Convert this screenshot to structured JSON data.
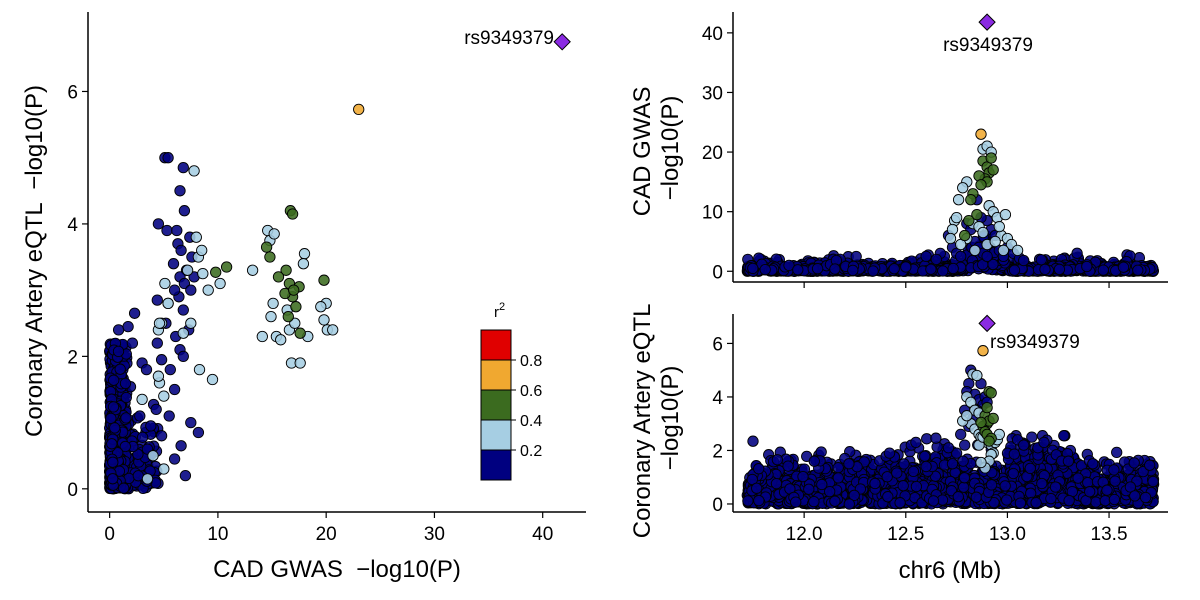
{
  "colors": {
    "r2_0_0.2": "#000080",
    "r2_0.2_0.4": "#a6cee3",
    "r2_0.4_0.6": "#3b6b1f",
    "r2_0.6_0.8": "#f0a830",
    "r2_0.8_1": "#e00000",
    "lead": "#8a2be2"
  },
  "legend": {
    "title": "r",
    "title_sup": "2",
    "labels": [
      "0.8",
      "0.6",
      "0.4",
      "0.2"
    ]
  },
  "chart_data": [
    {
      "id": "scatter",
      "type": "scatter",
      "title": "",
      "xlabel": "CAD GWAS  −log10(P)",
      "ylabel": "Coronary Artery eQTL  −log10(P)",
      "xlim": [
        -2,
        44
      ],
      "ylim": [
        -0.35,
        7.2
      ],
      "xticks": [
        0,
        10,
        20,
        30,
        40
      ],
      "yticks": [
        0,
        2,
        4,
        6
      ],
      "lead": {
        "x": 41.8,
        "y": 6.75,
        "label": "rs9349379"
      },
      "orange": [
        {
          "x": 23.0,
          "y": 5.73
        }
      ],
      "green": [
        [
          9.8,
          3.27
        ],
        [
          10.8,
          3.35
        ],
        [
          14.5,
          3.65
        ],
        [
          14.8,
          3.5
        ],
        [
          16.3,
          3.3
        ],
        [
          16.6,
          3.1
        ],
        [
          16.9,
          2.9
        ],
        [
          17.2,
          2.75
        ],
        [
          16.2,
          2.95
        ],
        [
          17.5,
          3.05
        ],
        [
          16.5,
          2.6
        ],
        [
          17.6,
          2.35
        ],
        [
          16.7,
          4.2
        ],
        [
          16.9,
          4.15
        ],
        [
          19.8,
          3.15
        ],
        [
          15.6,
          3.2
        ],
        [
          17.0,
          3.0
        ]
      ],
      "lightblue": [
        [
          5.1,
          3.1
        ],
        [
          5.4,
          2.8
        ],
        [
          7.8,
          4.8
        ],
        [
          8.0,
          3.8
        ],
        [
          8.2,
          3.5
        ],
        [
          8.6,
          3.25
        ],
        [
          9.1,
          3.0
        ],
        [
          10.2,
          3.1
        ],
        [
          14.1,
          2.3
        ],
        [
          14.9,
          2.6
        ],
        [
          15.4,
          2.3
        ],
        [
          15.8,
          2.25
        ],
        [
          16.6,
          2.4
        ],
        [
          16.8,
          1.9
        ],
        [
          17.6,
          1.9
        ],
        [
          16.4,
          2.7
        ],
        [
          14.6,
          3.9
        ],
        [
          14.8,
          3.75
        ],
        [
          15.2,
          3.85
        ],
        [
          18.0,
          3.55
        ],
        [
          17.1,
          2.5
        ],
        [
          18.3,
          2.3
        ],
        [
          19.8,
          2.55
        ],
        [
          20.1,
          2.4
        ],
        [
          20.6,
          2.4
        ],
        [
          20.0,
          2.8
        ],
        [
          7.5,
          2.5
        ],
        [
          6.8,
          2.35
        ],
        [
          8.3,
          1.8
        ],
        [
          9.5,
          1.65
        ],
        [
          4.5,
          2.4
        ],
        [
          4.8,
          2.5
        ],
        [
          5.4,
          2.8
        ],
        [
          4.6,
          2.5
        ],
        [
          4.6,
          1.6
        ],
        [
          4.5,
          1.7
        ],
        [
          5.0,
          1.4
        ],
        [
          3.0,
          1.35
        ],
        [
          4.0,
          0.5
        ],
        [
          5.0,
          0.3
        ],
        [
          3.5,
          0.15
        ],
        [
          13.2,
          3.3
        ],
        [
          8.5,
          3.6
        ],
        [
          7.2,
          3.3
        ],
        [
          15.1,
          2.8
        ],
        [
          19.5,
          2.75
        ],
        [
          17.9,
          3.4
        ]
      ],
      "navy_extra": [
        [
          5.1,
          5.0
        ],
        [
          5.4,
          5.0
        ],
        [
          6.8,
          4.85
        ],
        [
          6.5,
          4.5
        ],
        [
          6.9,
          4.2
        ],
        [
          4.5,
          4.0
        ],
        [
          5.3,
          3.9
        ],
        [
          6.2,
          3.9
        ],
        [
          6.3,
          3.7
        ],
        [
          6.6,
          3.6
        ],
        [
          7.4,
          3.8
        ],
        [
          7.6,
          3.5
        ],
        [
          7.1,
          3.3
        ],
        [
          6.5,
          3.2
        ],
        [
          6.9,
          3.1
        ],
        [
          7.5,
          3.0
        ],
        [
          6.4,
          2.9
        ],
        [
          6.0,
          3.0
        ],
        [
          6.8,
          2.7
        ],
        [
          7.3,
          2.4
        ],
        [
          4.4,
          2.2
        ],
        [
          5.2,
          2.5
        ],
        [
          6.5,
          2.1
        ],
        [
          6.8,
          2.0
        ],
        [
          3.0,
          1.9
        ],
        [
          3.4,
          1.8
        ],
        [
          4.8,
          1.95
        ],
        [
          5.6,
          1.8
        ],
        [
          6.0,
          1.5
        ],
        [
          7.5,
          1.0
        ],
        [
          8.2,
          0.85
        ],
        [
          6.6,
          0.65
        ],
        [
          6.0,
          0.45
        ],
        [
          4.8,
          0.8
        ],
        [
          4.3,
          1.2
        ],
        [
          3.8,
          0.95
        ],
        [
          7.0,
          0.2
        ],
        [
          5.5,
          1.1
        ],
        [
          2.3,
          2.65
        ],
        [
          1.7,
          2.45
        ],
        [
          2.1,
          2.2
        ],
        [
          4.4,
          2.85
        ],
        [
          5.9,
          3.4
        ],
        [
          7.8,
          3.2
        ],
        [
          6.1,
          2.3
        ],
        [
          3.5,
          0.6
        ]
      ],
      "cloud": {
        "count": 900,
        "color": "r2_0_0.2"
      }
    },
    {
      "id": "gwas",
      "type": "scatter",
      "title": "",
      "xlabel": "",
      "ylabel_lines": [
        "CAD GWAS",
        "−log10(P)"
      ],
      "xlim": [
        11.65,
        13.79
      ],
      "ylim": [
        -1.8,
        43.5
      ],
      "xticks": [
        12.0,
        12.5,
        13.0,
        13.5
      ],
      "yticks": [
        0,
        10,
        20,
        30,
        40
      ],
      "lead": {
        "x": 12.9,
        "y": 41.8,
        "label": "rs9349379"
      },
      "orange": [
        {
          "x": 12.87,
          "y": 23.0
        }
      ],
      "green": [
        [
          12.88,
          18.5
        ],
        [
          12.9,
          17.5
        ],
        [
          12.91,
          16.5
        ],
        [
          12.89,
          15.5
        ],
        [
          12.92,
          19.0
        ],
        [
          12.86,
          16.0
        ],
        [
          12.9,
          15.0
        ],
        [
          12.83,
          13.0
        ],
        [
          12.82,
          12.0
        ],
        [
          12.85,
          9.5
        ],
        [
          12.93,
          17.0
        ],
        [
          12.87,
          14.5
        ],
        [
          12.81,
          8.5
        ],
        [
          12.79,
          6.0
        ]
      ],
      "lightblue": [
        [
          12.88,
          20.5
        ],
        [
          12.9,
          21.0
        ],
        [
          12.92,
          20.0
        ],
        [
          12.8,
          15.0
        ],
        [
          12.78,
          14.0
        ],
        [
          12.76,
          12.0
        ],
        [
          12.74,
          8.5
        ],
        [
          12.73,
          7.0
        ],
        [
          12.75,
          9.0
        ],
        [
          12.83,
          8.0
        ],
        [
          12.86,
          7.5
        ],
        [
          12.88,
          6.5
        ],
        [
          12.91,
          11.0
        ],
        [
          12.93,
          10.0
        ],
        [
          12.95,
          9.0
        ],
        [
          12.97,
          6.0
        ],
        [
          12.99,
          9.5
        ],
        [
          12.96,
          7.5
        ],
        [
          13.0,
          5.5
        ],
        [
          13.02,
          4.5
        ],
        [
          13.05,
          3.5
        ],
        [
          12.8,
          5.5
        ],
        [
          12.84,
          3.5
        ],
        [
          12.77,
          4.5
        ],
        [
          12.9,
          4.5
        ],
        [
          12.72,
          5.5
        ],
        [
          12.94,
          5.0
        ],
        [
          12.98,
          3.5
        ]
      ],
      "navy_extra": [
        [
          12.71,
          6.0
        ],
        [
          12.73,
          4.0
        ],
        [
          12.75,
          3.0
        ],
        [
          12.77,
          2.5
        ],
        [
          12.8,
          8.0
        ],
        [
          12.82,
          7.0
        ],
        [
          12.84,
          5.0
        ],
        [
          12.86,
          4.0
        ],
        [
          12.88,
          3.0
        ],
        [
          12.9,
          2.5
        ],
        [
          12.92,
          7.0
        ],
        [
          12.94,
          6.0
        ],
        [
          12.96,
          3.5
        ],
        [
          12.98,
          2.5
        ],
        [
          13.0,
          4.0
        ],
        [
          13.03,
          3.0
        ],
        [
          13.06,
          2.2
        ],
        [
          13.08,
          1.8
        ],
        [
          12.69,
          2.5
        ],
        [
          12.67,
          3.0
        ],
        [
          12.65,
          2.0
        ],
        [
          12.6,
          2.5
        ],
        [
          12.9,
          8.5
        ],
        [
          12.87,
          9.0
        ],
        [
          12.85,
          12.0
        ]
      ],
      "cloud": {
        "count": 1500,
        "color": "r2_0_0.2"
      }
    },
    {
      "id": "eqtl",
      "type": "scatter",
      "title": "",
      "xlabel": "chr6 (Mb)",
      "ylabel_lines": [
        "Coronary Artery eQTL",
        "−log10(P)"
      ],
      "xlim": [
        11.65,
        13.79
      ],
      "ylim": [
        -0.3,
        7.1
      ],
      "xticks": [
        12.0,
        12.5,
        13.0,
        13.5
      ],
      "yticks": [
        0,
        2,
        4,
        6
      ],
      "lead": {
        "x": 12.9,
        "y": 6.75,
        "label": "rs9349379"
      },
      "orange": [
        {
          "x": 12.88,
          "y": 5.73
        }
      ],
      "green": [
        [
          12.89,
          3.3
        ],
        [
          12.9,
          3.6
        ],
        [
          12.91,
          4.2
        ],
        [
          12.92,
          4.15
        ],
        [
          12.9,
          3.0
        ],
        [
          12.88,
          2.9
        ],
        [
          12.89,
          2.7
        ],
        [
          12.91,
          3.1
        ],
        [
          12.93,
          3.2
        ],
        [
          12.87,
          3.05
        ],
        [
          12.9,
          2.6
        ],
        [
          12.92,
          2.45
        ],
        [
          12.91,
          2.35
        ]
      ],
      "lightblue": [
        [
          12.83,
          4.85
        ],
        [
          12.85,
          4.8
        ],
        [
          12.8,
          4.0
        ],
        [
          12.82,
          3.8
        ],
        [
          12.84,
          3.5
        ],
        [
          12.86,
          3.4
        ],
        [
          12.82,
          3.0
        ],
        [
          12.84,
          2.8
        ],
        [
          12.86,
          2.6
        ],
        [
          12.87,
          2.5
        ],
        [
          12.9,
          2.3
        ],
        [
          12.92,
          2.2
        ],
        [
          12.94,
          2.3
        ],
        [
          12.95,
          2.4
        ],
        [
          12.96,
          2.6
        ],
        [
          12.93,
          1.9
        ],
        [
          12.92,
          1.85
        ],
        [
          12.86,
          2.2
        ],
        [
          12.78,
          3.1
        ],
        [
          12.8,
          3.3
        ],
        [
          12.88,
          2.5
        ],
        [
          12.91,
          1.6
        ],
        [
          12.89,
          1.35
        ],
        [
          12.87,
          1.55
        ]
      ],
      "navy_extra": [
        [
          12.82,
          5.0
        ],
        [
          12.81,
          4.5
        ],
        [
          12.8,
          4.2
        ],
        [
          12.84,
          4.1
        ],
        [
          12.86,
          3.9
        ],
        [
          12.88,
          3.7
        ],
        [
          12.85,
          3.5
        ],
        [
          12.83,
          3.2
        ],
        [
          12.79,
          3.5
        ],
        [
          12.81,
          2.9
        ],
        [
          12.87,
          4.5
        ],
        [
          12.89,
          4.0
        ],
        [
          12.9,
          3.8
        ],
        [
          12.79,
          2.2
        ],
        [
          12.77,
          2.6
        ],
        [
          12.75,
          1.9
        ],
        [
          12.73,
          1.5
        ],
        [
          12.71,
          2.1
        ],
        [
          13.05,
          2.4
        ],
        [
          13.08,
          2.2
        ],
        [
          13.12,
          2.5
        ],
        [
          13.15,
          2.1
        ],
        [
          13.18,
          2.3
        ],
        [
          12.42,
          1.9
        ],
        [
          12.55,
          2.3
        ],
        [
          12.63,
          1.4
        ],
        [
          12.2,
          1.7
        ],
        [
          12.22,
          1.5
        ],
        [
          13.3,
          1.6
        ],
        [
          13.42,
          1.5
        ],
        [
          13.7,
          1.45
        ],
        [
          12.05,
          1.6
        ],
        [
          12.6,
          1.4
        ]
      ],
      "cloud": {
        "count": 2600,
        "color": "r2_0_0.2"
      }
    }
  ]
}
